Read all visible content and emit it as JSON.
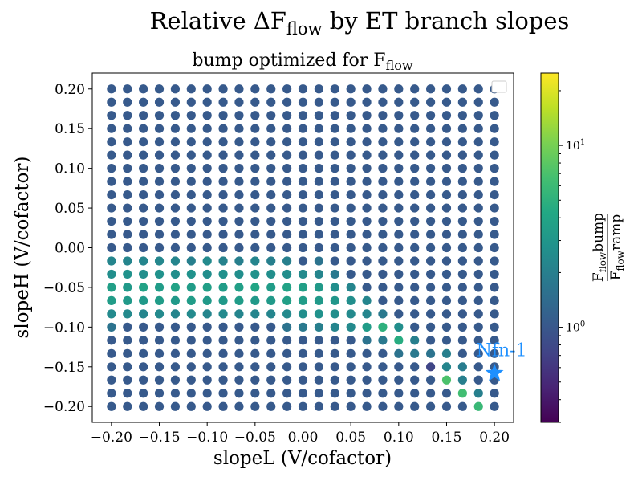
{
  "chart_data": {
    "type": "scatter",
    "title": "Relative ΔF",
    "title_sub": "flow",
    "title_rest": " by ET branch slopes",
    "subtitle": "bump optimized for F",
    "subtitle_sub": "flow",
    "xlabel": "slopeL (V/cofactor)",
    "ylabel": "slopeH (V/cofactor)",
    "xlim": [
      -0.22,
      0.22
    ],
    "ylim": [
      -0.22,
      0.22
    ],
    "xticks": [
      -0.2,
      -0.15,
      -0.1,
      -0.05,
      0.0,
      0.05,
      0.1,
      0.15,
      0.2
    ],
    "xtick_labels": [
      "−0.20",
      "−0.15",
      "−0.10",
      "−0.05",
      "0.00",
      "0.05",
      "0.10",
      "0.15",
      "0.20"
    ],
    "yticks": [
      0.2,
      0.15,
      0.1,
      0.05,
      0.0,
      -0.05,
      -0.1,
      -0.15,
      -0.2
    ],
    "ytick_labels": [
      "0.20",
      "0.15",
      "0.10",
      "0.05",
      "0.00",
      "−0.05",
      "−0.10",
      "−0.15",
      "−0.20"
    ],
    "grid": false,
    "legend": "top-right (empty)",
    "colormap": "viridis",
    "color_scale": "log",
    "color_range": [
      0.3,
      25
    ],
    "colorbar": {
      "label_numer": "F",
      "label_numer_sub": "flow",
      "label_numer_rest": "bump",
      "label_denom": "F",
      "label_denom_sub": "flow",
      "label_denom_rest": "ramp",
      "ticks": [
        {
          "value": 1,
          "base": "10",
          "exp": "0"
        },
        {
          "value": 10,
          "base": "10",
          "exp": "1"
        }
      ]
    },
    "grid_points": {
      "x_start": -0.2,
      "x_end": 0.2,
      "count_x": 25,
      "y_start": -0.2,
      "y_end": 0.2,
      "count_y": 25,
      "default_ratio": 1.05
    },
    "highlighted_points": [
      {
        "x": -0.2,
        "y": -0.0167,
        "ratio": 2.2
      },
      {
        "x": -0.1833,
        "y": -0.0167,
        "ratio": 2.2
      },
      {
        "x": -0.1667,
        "y": -0.0167,
        "ratio": 2.2
      },
      {
        "x": -0.15,
        "y": -0.0167,
        "ratio": 2.3
      },
      {
        "x": -0.1333,
        "y": -0.0167,
        "ratio": 2.2
      },
      {
        "x": -0.1167,
        "y": -0.0167,
        "ratio": 2.0
      },
      {
        "x": -0.1,
        "y": -0.0167,
        "ratio": 2.4
      },
      {
        "x": -0.0833,
        "y": -0.0167,
        "ratio": 2.1
      },
      {
        "x": -0.0667,
        "y": -0.0167,
        "ratio": 2.0
      },
      {
        "x": -0.05,
        "y": -0.0167,
        "ratio": 2.2
      },
      {
        "x": -0.0333,
        "y": -0.0167,
        "ratio": 2.0
      },
      {
        "x": -0.0167,
        "y": -0.0167,
        "ratio": 2.0
      },
      {
        "x": 0.0167,
        "y": -0.0167,
        "ratio": 1.6
      },
      {
        "x": -0.2,
        "y": -0.0333,
        "ratio": 2.6
      },
      {
        "x": -0.1833,
        "y": -0.0333,
        "ratio": 2.8
      },
      {
        "x": -0.1667,
        "y": -0.0333,
        "ratio": 2.6
      },
      {
        "x": -0.15,
        "y": -0.0333,
        "ratio": 2.8
      },
      {
        "x": -0.1333,
        "y": -0.0333,
        "ratio": 2.6
      },
      {
        "x": -0.1167,
        "y": -0.0333,
        "ratio": 2.8
      },
      {
        "x": -0.1,
        "y": -0.0333,
        "ratio": 2.6
      },
      {
        "x": -0.0833,
        "y": -0.0333,
        "ratio": 2.7
      },
      {
        "x": -0.0667,
        "y": -0.0333,
        "ratio": 2.6
      },
      {
        "x": -0.05,
        "y": -0.0333,
        "ratio": 2.8
      },
      {
        "x": -0.0333,
        "y": -0.0333,
        "ratio": 2.6
      },
      {
        "x": -0.0167,
        "y": -0.0333,
        "ratio": 2.6
      },
      {
        "x": 0.0,
        "y": -0.0333,
        "ratio": 2.4
      },
      {
        "x": 0.0167,
        "y": -0.0333,
        "ratio": 2.2
      },
      {
        "x": 0.0333,
        "y": -0.0333,
        "ratio": 1.8
      },
      {
        "x": -0.2,
        "y": -0.05,
        "ratio": 3.6
      },
      {
        "x": -0.1833,
        "y": -0.05,
        "ratio": 3.2
      },
      {
        "x": -0.1667,
        "y": -0.05,
        "ratio": 3.8
      },
      {
        "x": -0.15,
        "y": -0.05,
        "ratio": 3.4
      },
      {
        "x": -0.1333,
        "y": -0.05,
        "ratio": 3.8
      },
      {
        "x": -0.1167,
        "y": -0.05,
        "ratio": 3.4
      },
      {
        "x": -0.1,
        "y": -0.05,
        "ratio": 3.6
      },
      {
        "x": -0.0833,
        "y": -0.05,
        "ratio": 3.4
      },
      {
        "x": -0.0667,
        "y": -0.05,
        "ratio": 3.6
      },
      {
        "x": -0.05,
        "y": -0.05,
        "ratio": 4.0
      },
      {
        "x": -0.0333,
        "y": -0.05,
        "ratio": 3.4
      },
      {
        "x": -0.0167,
        "y": -0.05,
        "ratio": 3.8
      },
      {
        "x": 0.0,
        "y": -0.05,
        "ratio": 3.6
      },
      {
        "x": 0.0167,
        "y": -0.05,
        "ratio": 3.2
      },
      {
        "x": 0.0333,
        "y": -0.05,
        "ratio": 2.6
      },
      {
        "x": 0.05,
        "y": -0.05,
        "ratio": 2.2
      },
      {
        "x": -0.2,
        "y": -0.0667,
        "ratio": 3.4
      },
      {
        "x": -0.1833,
        "y": -0.0667,
        "ratio": 3.2
      },
      {
        "x": -0.1667,
        "y": -0.0667,
        "ratio": 3.2
      },
      {
        "x": -0.15,
        "y": -0.0667,
        "ratio": 3.4
      },
      {
        "x": -0.1333,
        "y": -0.0667,
        "ratio": 3.2
      },
      {
        "x": -0.1167,
        "y": -0.0667,
        "ratio": 3.4
      },
      {
        "x": -0.1,
        "y": -0.0667,
        "ratio": 3.2
      },
      {
        "x": -0.0833,
        "y": -0.0667,
        "ratio": 3.2
      },
      {
        "x": -0.0667,
        "y": -0.0667,
        "ratio": 3.4
      },
      {
        "x": -0.05,
        "y": -0.0667,
        "ratio": 3.2
      },
      {
        "x": -0.0333,
        "y": -0.0667,
        "ratio": 3.2
      },
      {
        "x": -0.0167,
        "y": -0.0667,
        "ratio": 3.6
      },
      {
        "x": 0.0,
        "y": -0.0667,
        "ratio": 3.4
      },
      {
        "x": 0.0167,
        "y": -0.0667,
        "ratio": 3.2
      },
      {
        "x": 0.0333,
        "y": -0.0667,
        "ratio": 3.0
      },
      {
        "x": 0.05,
        "y": -0.0667,
        "ratio": 2.6
      },
      {
        "x": 0.0667,
        "y": -0.0667,
        "ratio": 2.2
      },
      {
        "x": -0.2,
        "y": -0.0833,
        "ratio": 2.4
      },
      {
        "x": -0.1833,
        "y": -0.0833,
        "ratio": 2.4
      },
      {
        "x": -0.1667,
        "y": -0.0833,
        "ratio": 2.2
      },
      {
        "x": -0.15,
        "y": -0.0833,
        "ratio": 2.4
      },
      {
        "x": -0.1333,
        "y": -0.0833,
        "ratio": 2.2
      },
      {
        "x": -0.1167,
        "y": -0.0833,
        "ratio": 2.4
      },
      {
        "x": -0.1,
        "y": -0.0833,
        "ratio": 2.2
      },
      {
        "x": -0.0833,
        "y": -0.0833,
        "ratio": 2.4
      },
      {
        "x": -0.0667,
        "y": -0.0833,
        "ratio": 2.2
      },
      {
        "x": -0.05,
        "y": -0.0833,
        "ratio": 2.2
      },
      {
        "x": -0.0333,
        "y": -0.0833,
        "ratio": 2.2
      },
      {
        "x": -0.0167,
        "y": -0.0833,
        "ratio": 2.4
      },
      {
        "x": 0.0,
        "y": -0.0833,
        "ratio": 2.6
      },
      {
        "x": 0.0167,
        "y": -0.0833,
        "ratio": 2.8
      },
      {
        "x": 0.0333,
        "y": -0.0833,
        "ratio": 2.6
      },
      {
        "x": 0.05,
        "y": -0.0833,
        "ratio": 2.4
      },
      {
        "x": 0.0667,
        "y": -0.0833,
        "ratio": 2.2
      },
      {
        "x": 0.0833,
        "y": -0.0833,
        "ratio": 1.8
      },
      {
        "x": -0.2,
        "y": -0.1,
        "ratio": 1.6
      },
      {
        "x": -0.0167,
        "y": -0.1,
        "ratio": 1.6
      },
      {
        "x": 0.0,
        "y": -0.1,
        "ratio": 1.8
      },
      {
        "x": 0.0167,
        "y": -0.1,
        "ratio": 2.0
      },
      {
        "x": 0.0333,
        "y": -0.1,
        "ratio": 2.2
      },
      {
        "x": 0.05,
        "y": -0.1,
        "ratio": 2.4
      },
      {
        "x": 0.0667,
        "y": -0.1,
        "ratio": 3.4
      },
      {
        "x": 0.0833,
        "y": -0.1,
        "ratio": 5.0
      },
      {
        "x": 0.1,
        "y": -0.1,
        "ratio": 2.6
      },
      {
        "x": 0.0667,
        "y": -0.1167,
        "ratio": 1.6
      },
      {
        "x": 0.0833,
        "y": -0.1167,
        "ratio": 1.8
      },
      {
        "x": 0.1,
        "y": -0.1167,
        "ratio": 4.6
      },
      {
        "x": 0.1167,
        "y": -0.1167,
        "ratio": 2.0
      },
      {
        "x": 0.1,
        "y": -0.1333,
        "ratio": 1.6
      },
      {
        "x": 0.1167,
        "y": -0.1333,
        "ratio": 1.8
      },
      {
        "x": 0.1333,
        "y": -0.1333,
        "ratio": 1.6
      },
      {
        "x": 0.15,
        "y": -0.1333,
        "ratio": 2.0
      },
      {
        "x": 0.1333,
        "y": -0.15,
        "ratio": 0.75
      },
      {
        "x": 0.15,
        "y": -0.15,
        "ratio": 2.2
      },
      {
        "x": 0.1667,
        "y": -0.15,
        "ratio": 1.9
      },
      {
        "x": 0.15,
        "y": -0.1667,
        "ratio": 7.0
      },
      {
        "x": 0.1667,
        "y": -0.1667,
        "ratio": 2.0
      },
      {
        "x": 0.1667,
        "y": -0.1833,
        "ratio": 6.4
      },
      {
        "x": 0.1833,
        "y": -0.1833,
        "ratio": 2.0
      },
      {
        "x": 0.1833,
        "y": -0.2,
        "ratio": 5.8
      }
    ],
    "annotations": [
      {
        "text": "Nfn-1",
        "x": 0.2,
        "y": -0.158,
        "marker": "star",
        "color": "#1e90ff"
      }
    ]
  }
}
